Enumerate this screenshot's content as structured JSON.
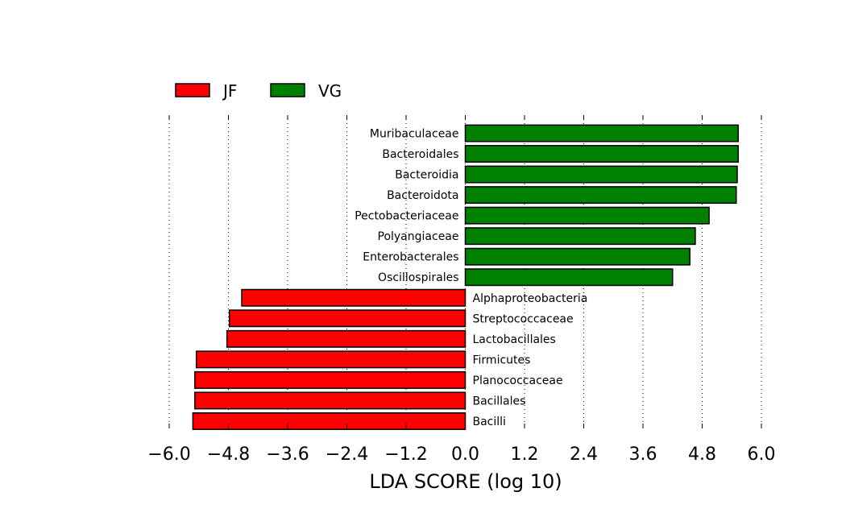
{
  "chart_data": {
    "type": "bar",
    "orientation": "horizontal",
    "xlabel": "LDA SCORE (log 10)",
    "ylabel": "",
    "title": "",
    "xlim": [
      -6.0,
      6.0
    ],
    "xticks": [
      -6.0,
      -4.8,
      -3.6,
      -2.4,
      -1.2,
      0.0,
      1.2,
      2.4,
      3.6,
      4.8,
      6.0
    ],
    "xtick_labels": [
      "−6.0",
      "−4.8",
      "−3.6",
      "−2.4",
      "−1.2",
      "0.0",
      "1.2",
      "2.4",
      "3.6",
      "4.8",
      "6.0"
    ],
    "grid": "vertical-dotted",
    "legend": {
      "placement": "top-left",
      "entries": [
        {
          "name": "JF",
          "color": "#ff0000"
        },
        {
          "name": "VG",
          "color": "#008000"
        }
      ]
    },
    "colors": {
      "JF": "#ff0000",
      "VG": "#008000"
    },
    "bars": [
      {
        "label": "Muribaculaceae",
        "group": "VG",
        "value": 5.53
      },
      {
        "label": "Bacteroidales",
        "group": "VG",
        "value": 5.53
      },
      {
        "label": "Bacteroidia",
        "group": "VG",
        "value": 5.51
      },
      {
        "label": "Bacteroidota",
        "group": "VG",
        "value": 5.49
      },
      {
        "label": "Pectobacteriaceae",
        "group": "VG",
        "value": 4.94
      },
      {
        "label": "Polyangiaceae",
        "group": "VG",
        "value": 4.66
      },
      {
        "label": "Enterobacterales",
        "group": "VG",
        "value": 4.55
      },
      {
        "label": "Oscillospirales",
        "group": "VG",
        "value": 4.2
      },
      {
        "label": "Alphaproteobacteria",
        "group": "JF",
        "value": -4.53
      },
      {
        "label": "Streptococcaceae",
        "group": "JF",
        "value": -4.78
      },
      {
        "label": "Lactobacillales",
        "group": "JF",
        "value": -4.83
      },
      {
        "label": "Firmicutes",
        "group": "JF",
        "value": -5.45
      },
      {
        "label": "Planococcaceae",
        "group": "JF",
        "value": -5.48
      },
      {
        "label": "Bacillales",
        "group": "JF",
        "value": -5.48
      },
      {
        "label": "Bacilli",
        "group": "JF",
        "value": -5.52
      }
    ]
  }
}
